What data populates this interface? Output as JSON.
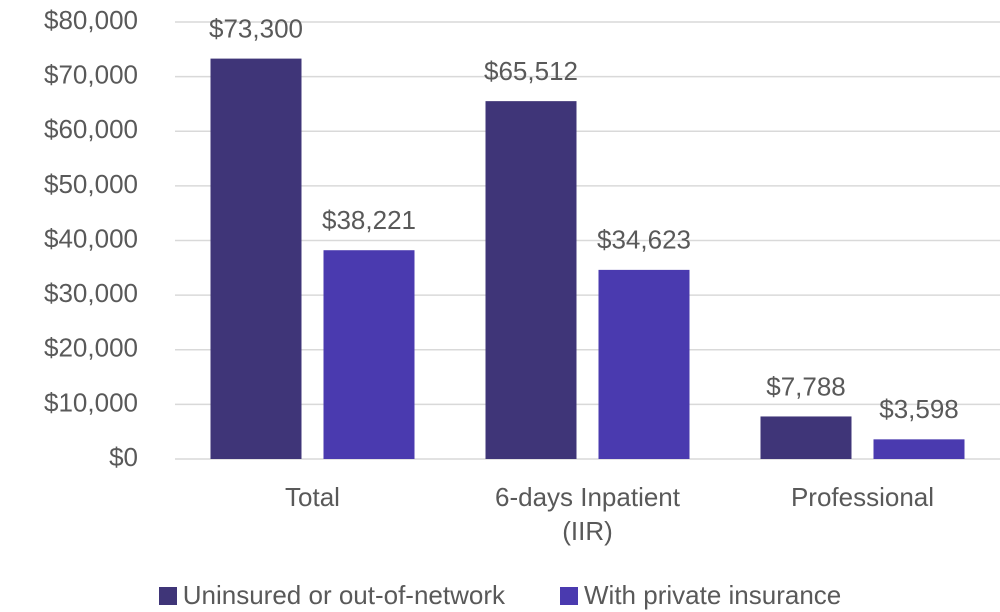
{
  "chart_data": {
    "type": "bar",
    "categories": [
      "Total",
      "6-days Inpatient (IIR)",
      "Professional"
    ],
    "series": [
      {
        "name": "Uninsured or out-of-network",
        "color": "#3f3578",
        "values": [
          73300,
          65512,
          7788
        ],
        "value_labels": [
          "$73,300",
          "$65,512",
          "$7,788"
        ]
      },
      {
        "name": "With private insurance",
        "color": "#4a3aaf",
        "values": [
          38221,
          34623,
          3598
        ],
        "value_labels": [
          "$38,221",
          "$34,623",
          "$3,598"
        ]
      }
    ],
    "ylim": [
      0,
      80000
    ],
    "yticks": [
      {
        "value": 0,
        "label": "$0"
      },
      {
        "value": 10000,
        "label": "$10,000"
      },
      {
        "value": 20000,
        "label": "$20,000"
      },
      {
        "value": 30000,
        "label": "$30,000"
      },
      {
        "value": 40000,
        "label": "$40,000"
      },
      {
        "value": 50000,
        "label": "$50,000"
      },
      {
        "value": 60000,
        "label": "$60,000"
      },
      {
        "value": 70000,
        "label": "$70,000"
      },
      {
        "value": 80000,
        "label": "$80,000"
      }
    ],
    "grid": true,
    "legend": "bottom"
  }
}
